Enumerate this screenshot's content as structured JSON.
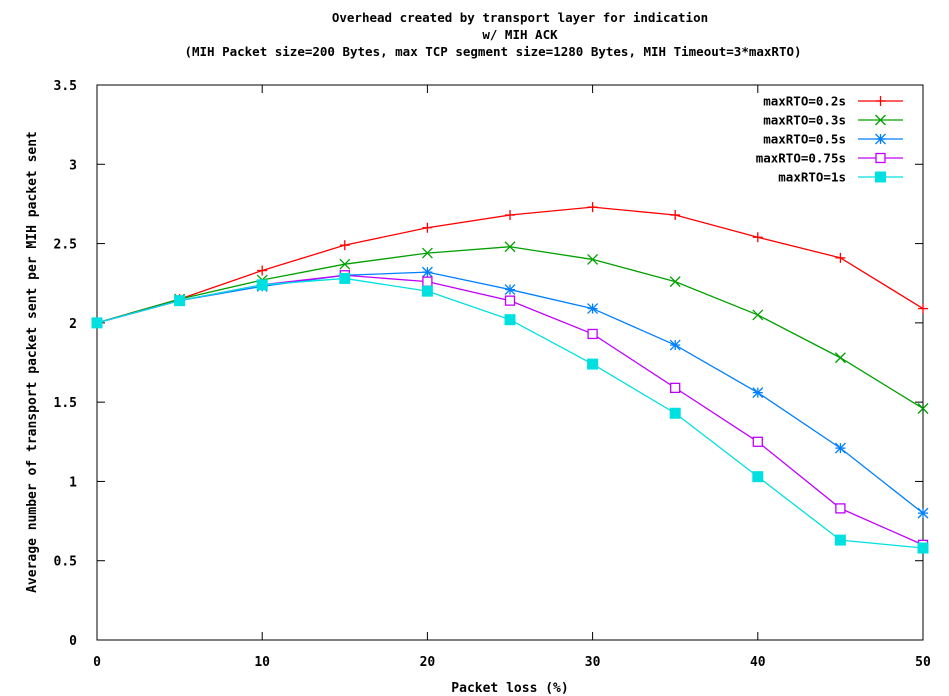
{
  "chart_data": {
    "type": "line",
    "title": "Overhead created by transport layer for indication",
    "title_line2": "w/ MIH ACK",
    "subtitle": "(MIH Packet size=200 Bytes, max TCP segment size=1280 Bytes, MIH Timeout=3*maxRTO)",
    "xlabel": "Packet loss (%)",
    "ylabel": "Average number of transport packet sent per MIH packet sent",
    "xlim": [
      0,
      50
    ],
    "ylim": [
      0,
      3.5
    ],
    "xticks": [
      "0",
      "10",
      "20",
      "30",
      "40",
      "50"
    ],
    "yticks": [
      "0",
      "0.5",
      "1",
      "1.5",
      "2",
      "2.5",
      "3",
      "3.5"
    ],
    "grid": false,
    "legend_position": "top-right",
    "x": [
      0,
      5,
      10,
      15,
      20,
      25,
      30,
      35,
      40,
      45,
      50
    ],
    "series": [
      {
        "name": "maxRTO=0.2s",
        "color": "#ff0000",
        "marker": "plus",
        "values": [
          2.0,
          2.15,
          2.33,
          2.49,
          2.6,
          2.68,
          2.73,
          2.68,
          2.54,
          2.41,
          2.09
        ]
      },
      {
        "name": "maxRTO=0.3s",
        "color": "#00a000",
        "marker": "cross",
        "values": [
          2.0,
          2.15,
          2.27,
          2.37,
          2.44,
          2.48,
          2.4,
          2.26,
          2.05,
          1.78,
          1.46
        ]
      },
      {
        "name": "maxRTO=0.5s",
        "color": "#0080ff",
        "marker": "star",
        "values": [
          2.0,
          2.14,
          2.23,
          2.3,
          2.32,
          2.21,
          2.09,
          1.86,
          1.56,
          1.21,
          0.8
        ]
      },
      {
        "name": "maxRTO=0.75s",
        "color": "#c000ff",
        "marker": "square-open",
        "values": [
          2.0,
          2.14,
          2.24,
          2.3,
          2.26,
          2.14,
          1.93,
          1.59,
          1.25,
          0.83,
          0.6
        ]
      },
      {
        "name": "maxRTO=1s",
        "color": "#00e0e0",
        "marker": "square-filled",
        "values": [
          2.0,
          2.14,
          2.24,
          2.28,
          2.2,
          2.02,
          1.74,
          1.43,
          1.03,
          0.63,
          0.58
        ]
      }
    ]
  }
}
